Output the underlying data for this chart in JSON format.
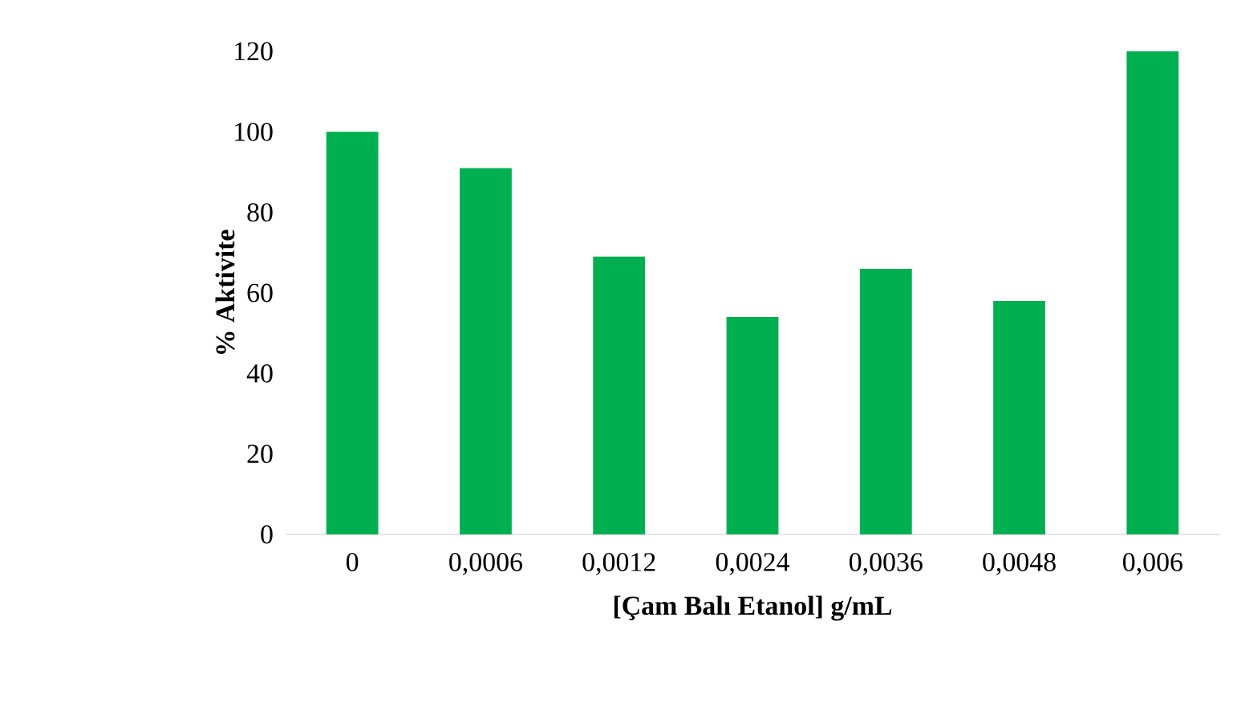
{
  "chart_data": {
    "type": "bar",
    "xlabel": "[Çam  Balı Etanol]  g/mL",
    "ylabel": "% Aktivite",
    "categories": [
      "0",
      "0,0006",
      "0,0012",
      "0,0024",
      "0,0036",
      "0,0048",
      "0,006"
    ],
    "values": [
      100,
      91,
      69,
      54,
      66,
      58,
      120
    ],
    "color": "#00b050",
    "ylim": [
      0,
      120
    ],
    "yticks": [
      0,
      20,
      40,
      60,
      80,
      100,
      120
    ]
  }
}
